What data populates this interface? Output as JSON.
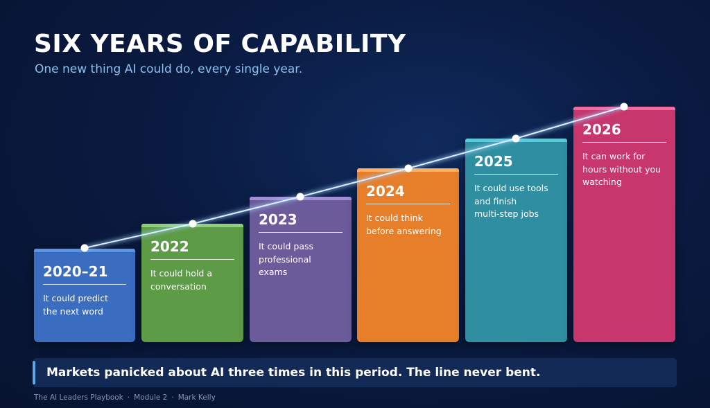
{
  "header": {
    "title": "SIX YEARS OF CAPABILITY",
    "subtitle": "One new thing AI could do, every single year."
  },
  "steps": [
    {
      "year": "2020–21",
      "text": "It could predict\nthe next word",
      "color": "#3a6cc0",
      "cap_color": "#5a94e6"
    },
    {
      "year": "2022",
      "text": "It could hold a\nconversation",
      "color": "#5d9b46",
      "cap_color": "#8ed07a"
    },
    {
      "year": "2023",
      "text": "It could pass\nprofessional\nexams",
      "color": "#6c5b9b",
      "cap_color": "#a18fd6"
    },
    {
      "year": "2024",
      "text": "It could think\nbefore answering",
      "color": "#e67e2a",
      "cap_color": "#ffb05e"
    },
    {
      "year": "2025",
      "text": "It could use tools\nand finish\nmulti-step jobs",
      "color": "#2f8fa0",
      "cap_color": "#5cc7d8"
    },
    {
      "year": "2026",
      "text": "It can work for\nhours without you\nwatching",
      "color": "#c7366c",
      "cap_color": "#f06aa0"
    }
  ],
  "callout": {
    "text": "Markets panicked about AI three times in this period. The line never bent."
  },
  "footer": {
    "course": "The AI Leaders Playbook",
    "module": "Module 2",
    "author": "Mark Kelly"
  }
}
